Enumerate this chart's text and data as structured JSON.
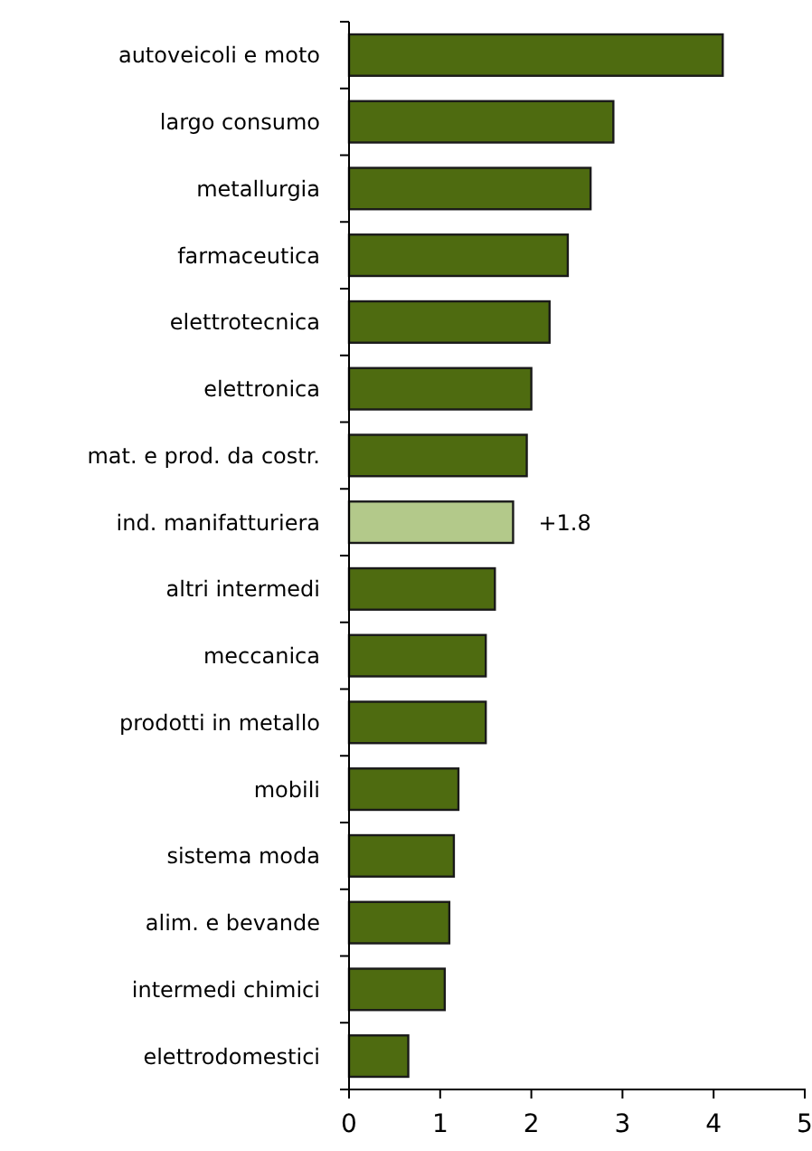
{
  "chart_data": {
    "type": "bar",
    "orientation": "horizontal",
    "categories": [
      "autoveicoli e moto",
      "largo consumo",
      "metallurgia",
      "farmaceutica",
      "elettrotecnica",
      "elettronica",
      "mat. e prod. da costr.",
      "ind. manifatturiera",
      "altri intermedi",
      "meccanica",
      "prodotti in metallo",
      "mobili",
      "sistema moda",
      "alim. e bevande",
      "intermedi chimici",
      "elettrodomestici"
    ],
    "values": [
      4.1,
      2.9,
      2.65,
      2.4,
      2.2,
      2.0,
      1.95,
      1.8,
      1.6,
      1.5,
      1.5,
      1.2,
      1.15,
      1.1,
      1.05,
      0.65
    ],
    "colors": [
      "#4e6b10",
      "#4e6b10",
      "#4e6b10",
      "#4e6b10",
      "#4e6b10",
      "#4e6b10",
      "#4e6b10",
      "#b3c98a",
      "#4e6b10",
      "#4e6b10",
      "#4e6b10",
      "#4e6b10",
      "#4e6b10",
      "#4e6b10",
      "#4e6b10",
      "#4e6b10"
    ],
    "value_labels": [
      null,
      null,
      null,
      null,
      null,
      null,
      null,
      "+1.8",
      null,
      null,
      null,
      null,
      null,
      null,
      null,
      null
    ],
    "xlim": [
      0,
      5
    ],
    "xticks": [
      0,
      1,
      2,
      3,
      4,
      5
    ],
    "grid": false
  }
}
